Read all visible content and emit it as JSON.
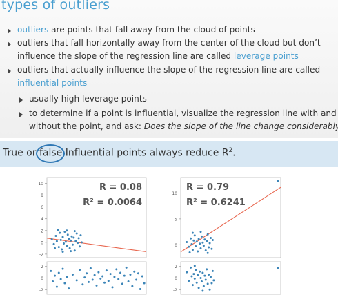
{
  "slide": {
    "title": "types of outliers",
    "bullets": {
      "b1": {
        "hl": "outliers",
        "rest": " are points that fall away from the cloud of points"
      },
      "b2": {
        "line1": "outliers that fall horizontally away from the center of the cloud but don’t",
        "line2pre": "influence the slope of the regression line are called ",
        "hl": "leverage points"
      },
      "b3": {
        "line1": "outliers that actually influence the slope of the regression line are called",
        "hl": "influential points"
      },
      "b4": {
        "text": "usually high leverage points"
      },
      "b5": {
        "line1": "to determine if a point is influential, visualize the regression line with and",
        "line2pre": "without the point, and ask: ",
        "italic": "Does the slope of the line change considerably?"
      }
    },
    "question": {
      "pre": "True or ",
      "circled": "false",
      "post": " Influential points always reduce R",
      "sup": "2",
      "end": "."
    },
    "colors": {
      "accent": "#4a9fd0",
      "question_band": "#d7e7f3",
      "circle": "#2f78b5",
      "points": "#3c85b8",
      "regression_line": "#e8674f"
    }
  },
  "chart_data": [
    {
      "type": "scatter",
      "panel": "left-top",
      "annotation_r": "R = 0.08",
      "annotation_r2": "R² = 0.0064",
      "yticks": [
        "10",
        "8",
        "6",
        "4",
        "2",
        "0",
        "-2"
      ],
      "ytick_values": [
        10,
        8,
        6,
        4,
        2,
        0,
        -2
      ],
      "ylim": [
        -2.6,
        11
      ],
      "xlim": [
        0,
        1
      ],
      "cluster_points": [
        [
          0.05,
          0.5
        ],
        [
          0.07,
          -0.3
        ],
        [
          0.09,
          1.1
        ],
        [
          0.1,
          0.2
        ],
        [
          0.12,
          -0.8
        ],
        [
          0.13,
          1.6
        ],
        [
          0.14,
          0.4
        ],
        [
          0.15,
          -1.2
        ],
        [
          0.16,
          0.9
        ],
        [
          0.17,
          -0.2
        ],
        [
          0.18,
          1.8
        ],
        [
          0.19,
          0.1
        ],
        [
          0.2,
          -0.6
        ],
        [
          0.21,
          1.3
        ],
        [
          0.22,
          0.6
        ],
        [
          0.23,
          -1.0
        ],
        [
          0.24,
          0.3
        ],
        [
          0.25,
          1.0
        ],
        [
          0.26,
          -0.4
        ],
        [
          0.27,
          0.8
        ],
        [
          0.28,
          -1.4
        ],
        [
          0.29,
          0.2
        ],
        [
          0.3,
          1.5
        ],
        [
          0.31,
          -0.1
        ],
        [
          0.32,
          0.7
        ],
        [
          0.33,
          -0.7
        ],
        [
          0.34,
          1.2
        ],
        [
          0.35,
          0.0
        ],
        [
          0.11,
          2.1
        ],
        [
          0.2,
          2.0
        ],
        [
          0.28,
          1.9
        ],
        [
          0.16,
          -1.6
        ],
        [
          0.24,
          -1.5
        ],
        [
          0.08,
          -1.0
        ]
      ],
      "regression": {
        "x": [
          0.0,
          1.0
        ],
        "y": [
          0.7,
          -1.6
        ]
      }
    },
    {
      "type": "scatter",
      "panel": "left-residuals",
      "yticks": [
        "2",
        "0",
        "-2"
      ],
      "ytick_values": [
        2,
        0,
        -2
      ],
      "ylim": [
        -2.8,
        2.8
      ],
      "xlim": [
        0,
        1
      ],
      "points": [
        [
          0.04,
          1.2
        ],
        [
          0.06,
          -0.6
        ],
        [
          0.08,
          0.4
        ],
        [
          0.1,
          -1.5
        ],
        [
          0.12,
          0.9
        ],
        [
          0.14,
          -0.2
        ],
        [
          0.16,
          1.6
        ],
        [
          0.18,
          -0.9
        ],
        [
          0.2,
          0.2
        ],
        [
          0.22,
          -1.8
        ],
        [
          0.26,
          0.6
        ],
        [
          0.3,
          -0.4
        ],
        [
          0.33,
          1.4
        ],
        [
          0.36,
          -1.1
        ],
        [
          0.38,
          0.1
        ],
        [
          0.4,
          0.8
        ],
        [
          0.42,
          -0.7
        ],
        [
          0.44,
          1.7
        ],
        [
          0.46,
          -0.3
        ],
        [
          0.48,
          0.5
        ],
        [
          0.5,
          -1.3
        ],
        [
          0.52,
          1.0
        ],
        [
          0.54,
          -0.1
        ],
        [
          0.56,
          0.3
        ],
        [
          0.58,
          -0.8
        ],
        [
          0.6,
          1.3
        ],
        [
          0.62,
          -0.5
        ],
        [
          0.64,
          0.7
        ],
        [
          0.66,
          -1.6
        ],
        [
          0.68,
          0.2
        ],
        [
          0.7,
          1.5
        ],
        [
          0.72,
          -0.2
        ],
        [
          0.74,
          0.9
        ],
        [
          0.76,
          -1.0
        ],
        [
          0.78,
          0.4
        ],
        [
          0.8,
          1.8
        ],
        [
          0.82,
          -0.6
        ],
        [
          0.84,
          0.6
        ],
        [
          0.86,
          -1.4
        ],
        [
          0.88,
          1.1
        ],
        [
          0.9,
          -0.3
        ],
        [
          0.92,
          0.8
        ],
        [
          0.94,
          -1.9
        ],
        [
          0.96,
          0.3
        ],
        [
          0.98,
          -0.9
        ]
      ]
    },
    {
      "type": "scatter",
      "panel": "right-top",
      "annotation_r": "R = 0.79",
      "annotation_r2": "R² = 0.6241",
      "yticks": [
        "10",
        "5",
        "0"
      ],
      "ytick_values": [
        10,
        5,
        0
      ],
      "ylim": [
        -2.5,
        13
      ],
      "xlim": [
        0,
        1
      ],
      "cluster_points": [
        [
          0.06,
          0.5
        ],
        [
          0.08,
          -0.4
        ],
        [
          0.1,
          1.2
        ],
        [
          0.11,
          0.1
        ],
        [
          0.12,
          -1.0
        ],
        [
          0.13,
          0.8
        ],
        [
          0.14,
          1.8
        ],
        [
          0.15,
          -0.3
        ],
        [
          0.16,
          0.6
        ],
        [
          0.17,
          -1.3
        ],
        [
          0.18,
          1.1
        ],
        [
          0.19,
          0.2
        ],
        [
          0.2,
          -0.7
        ],
        [
          0.21,
          1.6
        ],
        [
          0.22,
          0.4
        ],
        [
          0.23,
          -0.2
        ],
        [
          0.24,
          1.0
        ],
        [
          0.25,
          -1.1
        ],
        [
          0.26,
          0.7
        ],
        [
          0.27,
          2.0
        ],
        [
          0.28,
          -0.5
        ],
        [
          0.29,
          0.3
        ],
        [
          0.3,
          1.3
        ],
        [
          0.31,
          -0.8
        ],
        [
          0.32,
          0.9
        ],
        [
          0.12,
          2.3
        ],
        [
          0.2,
          2.5
        ],
        [
          0.27,
          -1.6
        ],
        [
          0.09,
          -1.5
        ]
      ],
      "outlier": [
        0.97,
        12.3
      ],
      "regression": {
        "x": [
          0.0,
          1.0
        ],
        "y": [
          -1.4,
          11.1
        ]
      }
    },
    {
      "type": "scatter",
      "panel": "right-residuals",
      "yticks": [
        "2",
        "0",
        "-2"
      ],
      "ytick_values": [
        2,
        0,
        -2
      ],
      "ylim": [
        -2.8,
        2.8
      ],
      "xlim": [
        0,
        1
      ],
      "points": [
        [
          0.06,
          1.0
        ],
        [
          0.08,
          -0.5
        ],
        [
          0.1,
          1.8
        ],
        [
          0.11,
          0.3
        ],
        [
          0.12,
          -1.2
        ],
        [
          0.13,
          0.7
        ],
        [
          0.14,
          -0.1
        ],
        [
          0.15,
          1.4
        ],
        [
          0.16,
          -0.8
        ],
        [
          0.17,
          0.5
        ],
        [
          0.18,
          -1.7
        ],
        [
          0.19,
          1.1
        ],
        [
          0.2,
          0.0
        ],
        [
          0.21,
          -0.6
        ],
        [
          0.22,
          0.9
        ],
        [
          0.23,
          -1.4
        ],
        [
          0.24,
          0.4
        ],
        [
          0.25,
          -0.3
        ],
        [
          0.26,
          1.5
        ],
        [
          0.27,
          -1.0
        ],
        [
          0.28,
          0.6
        ],
        [
          0.29,
          -2.0
        ],
        [
          0.3,
          0.2
        ],
        [
          0.31,
          -0.9
        ],
        [
          0.32,
          1.2
        ],
        [
          0.33,
          -0.4
        ],
        [
          0.14,
          2.1
        ],
        [
          0.22,
          -2.2
        ]
      ],
      "outlier": [
        0.97,
        1.7
      ]
    }
  ]
}
